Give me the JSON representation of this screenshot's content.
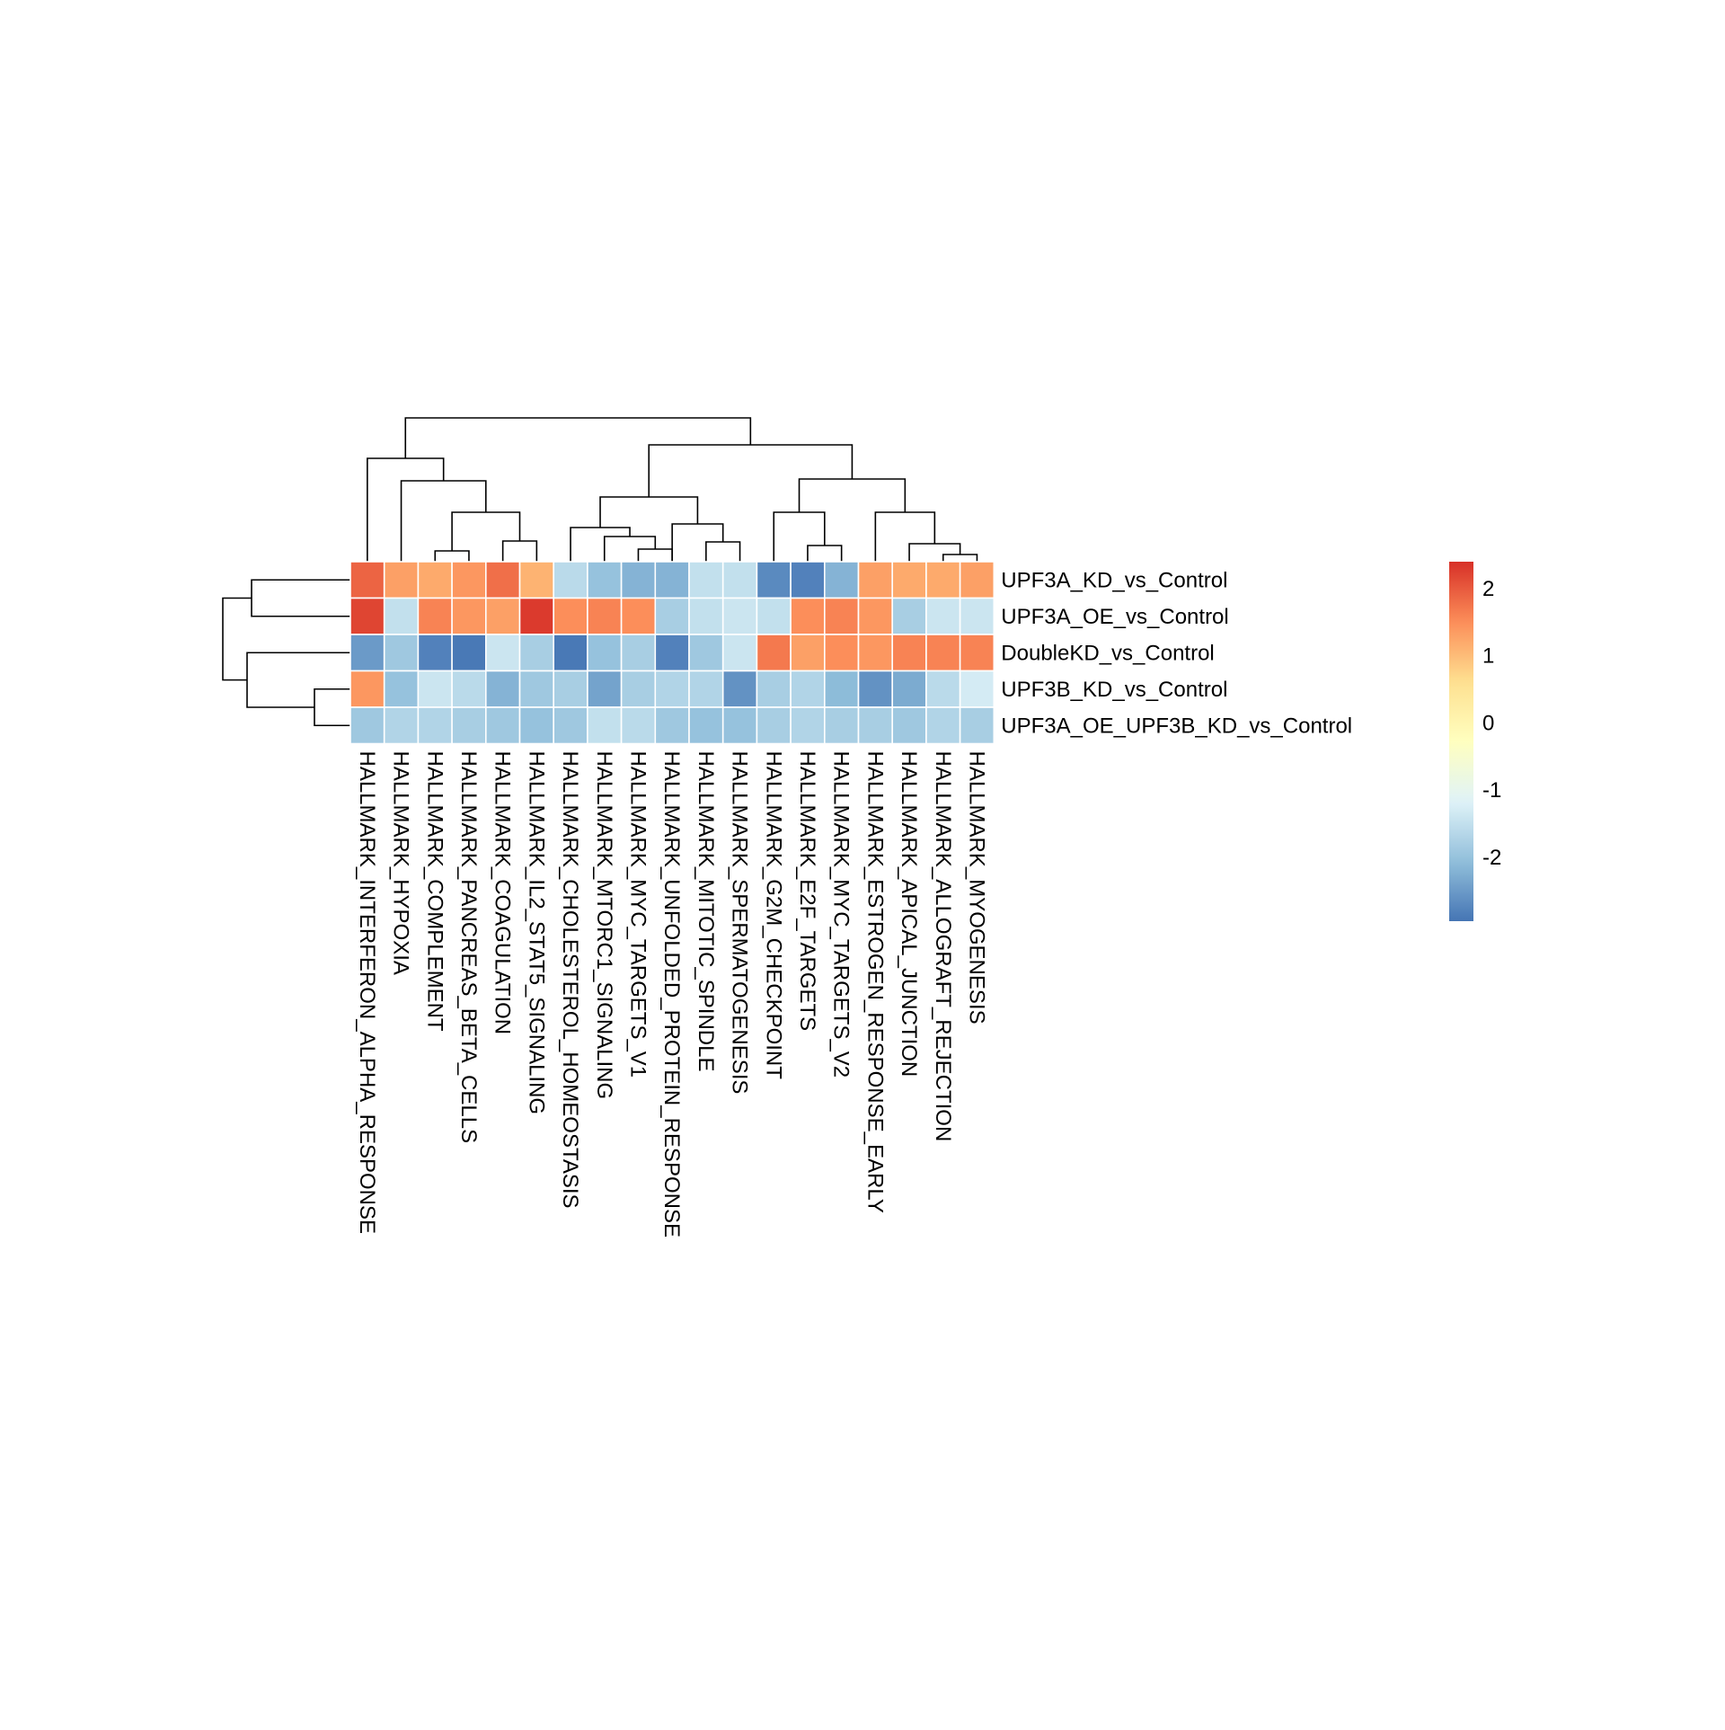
{
  "chart_data": {
    "type": "heatmap",
    "rows": [
      "UPF3A_KD_vs_Control",
      "UPF3A_OE_vs_Control",
      "DoubleKD_vs_Control",
      "UPF3B_KD_vs_Control",
      "UPF3A_OE_UPF3B_KD_vs_Control"
    ],
    "columns": [
      "HALLMARK_INTERFERON_ALPHA_RESPONSE",
      "HALLMARK_HYPOXIA",
      "HALLMARK_COMPLEMENT",
      "HALLMARK_PANCREAS_BETA_CELLS",
      "HALLMARK_COAGULATION",
      "HALLMARK_IL2_STAT5_SIGNALING",
      "HALLMARK_CHOLESTEROL_HOMEOSTASIS",
      "HALLMARK_MTORC1_SIGNALING",
      "HALLMARK_MYC_TARGETS_V1",
      "HALLMARK_UNFOLDED_PROTEIN_RESPONSE",
      "HALLMARK_MITOTIC_SPINDLE",
      "HALLMARK_SPERMATOGENESIS",
      "HALLMARK_G2M_CHECKPOINT",
      "HALLMARK_E2F_TARGETS",
      "HALLMARK_MYC_TARGETS_V2",
      "HALLMARK_ESTROGEN_RESPONSE_EARLY",
      "HALLMARK_APICAL_JUNCTION",
      "HALLMARK_ALLOGRAFT_REJECTION",
      "HALLMARK_MYOGENESIS"
    ],
    "values": [
      [
        1.9,
        1.3,
        1.2,
        1.4,
        1.8,
        1.1,
        -1.6,
        -2.0,
        -2.2,
        -2.2,
        -1.5,
        -1.5,
        -2.7,
        -2.8,
        -2.2,
        1.3,
        1.2,
        1.2,
        1.3
      ],
      [
        2.2,
        -1.5,
        1.6,
        1.4,
        1.3,
        2.3,
        1.5,
        1.6,
        1.5,
        -1.8,
        -1.5,
        -1.4,
        -1.5,
        1.5,
        1.6,
        1.4,
        -1.8,
        -1.4,
        -1.4
      ],
      [
        -2.5,
        -1.9,
        -2.8,
        -2.9,
        -1.4,
        -1.8,
        -2.9,
        -2.0,
        -1.8,
        -2.8,
        -1.9,
        -1.4,
        1.7,
        1.3,
        1.5,
        1.4,
        1.6,
        1.6,
        1.6
      ],
      [
        1.4,
        -2.0,
        -1.4,
        -1.6,
        -2.2,
        -1.9,
        -1.8,
        -2.4,
        -1.8,
        -1.7,
        -1.7,
        -2.6,
        -1.8,
        -1.7,
        -2.1,
        -2.6,
        -2.3,
        -1.6,
        -1.3
      ],
      [
        -1.9,
        -1.7,
        -1.7,
        -1.8,
        -1.9,
        -2.0,
        -1.9,
        -1.5,
        -1.6,
        -1.9,
        -2.0,
        -2.0,
        -1.8,
        -1.7,
        -1.8,
        -1.8,
        -1.9,
        -1.7,
        -1.8
      ]
    ],
    "legend": {
      "ticks": [
        2,
        1,
        0,
        -1,
        -2
      ],
      "range": [
        -2.95,
        2.4
      ],
      "colors": [
        "#4575B4",
        "#91BFDB",
        "#E0F3F8",
        "#FFFFBF",
        "#FEE090",
        "#FC8D59",
        "#D73027"
      ]
    },
    "row_dendrogram": true,
    "column_dendrogram": true,
    "cell_border_color": "#FFFFFF",
    "legend_placement": "right"
  }
}
